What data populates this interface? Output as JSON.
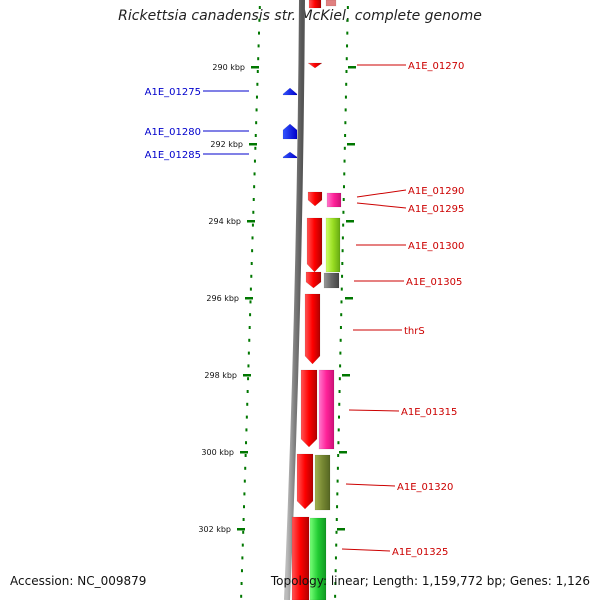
{
  "title": "Rickettsia canadensis str. McKiel, complete genome",
  "footer": {
    "accession": "Accession: NC_009879",
    "summary": "Topology: linear; Length: 1,159,772 bp; Genes: 1,126"
  },
  "colors": {
    "forward_label": "#cc0000",
    "reverse_label": "#0000cc",
    "tick": "#007700",
    "backbone": "#808080"
  },
  "ticks": [
    "290 kbp",
    "292 kbp",
    "294 kbp",
    "296 kbp",
    "298 kbp",
    "300 kbp",
    "302 kbp"
  ],
  "genes_right": [
    {
      "label": "A1E_01270",
      "color": "#ee0000"
    },
    {
      "label": "A1E_01290",
      "color": "#ff2299"
    },
    {
      "label": "A1E_01295",
      "color": "#ee0000"
    },
    {
      "label": "A1E_01300",
      "color": "#88dd22"
    },
    {
      "label": "A1E_01305",
      "color": "#666666"
    },
    {
      "label": "thrS",
      "color": "#ee0000"
    },
    {
      "label": "A1E_01315",
      "color": "#ff2299"
    },
    {
      "label": "A1E_01320",
      "color": "#667722"
    },
    {
      "label": "A1E_01325",
      "color": "#22cc33"
    }
  ],
  "genes_left": [
    {
      "label": "A1E_01275",
      "color": "#0000ee"
    },
    {
      "label": "A1E_01280",
      "color": "#0000ee"
    },
    {
      "label": "A1E_01285",
      "color": "#0000ee"
    }
  ]
}
